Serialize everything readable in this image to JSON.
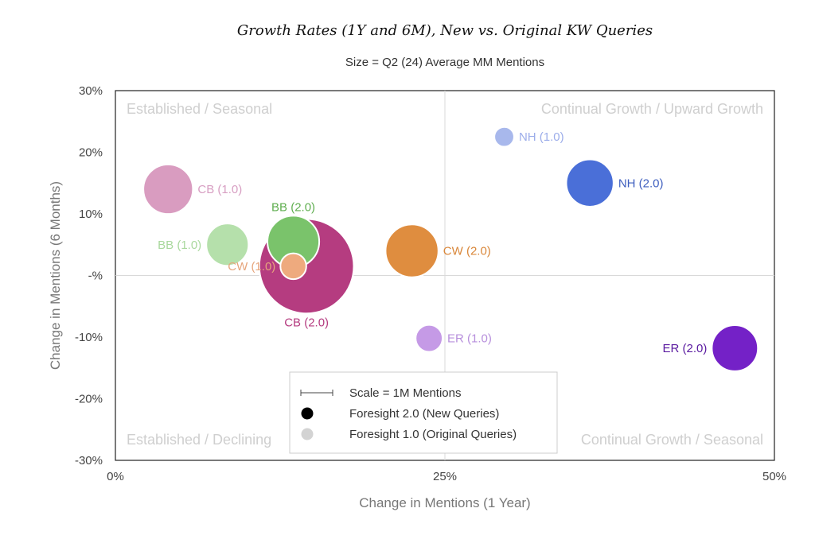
{
  "title": "Growth Rates (1Y and 6M), New vs. Original KW Queries",
  "subtitle": "Size = Q2 (24) Average MM Mentions",
  "chart_data": {
    "type": "scatter",
    "title": "Growth Rates (1Y and 6M), New vs. Original KW Queries",
    "subtitle": "Size = Q2 (24) Average MM Mentions",
    "xlabel": "Change in Mentions (1 Year)",
    "ylabel": "Change in Mentions (6 Months)",
    "xlim": [
      0,
      50
    ],
    "ylim": [
      -30,
      30
    ],
    "x_ticks": [
      "0%",
      "25%",
      "50%"
    ],
    "y_ticks": [
      "30%",
      "20%",
      "10%",
      "-%",
      "-10%",
      "-20%",
      "-30%"
    ],
    "x_tick_values": [
      0,
      25,
      50
    ],
    "y_tick_values": [
      30,
      20,
      10,
      0,
      -10,
      -20,
      -30
    ],
    "quadrant_labels": {
      "top_left": "Established / Seasonal",
      "top_right": "Continual Growth / Upward Growth",
      "bottom_left": "Established / Declining",
      "bottom_right": "Continual Growth / Seasonal"
    },
    "points": [
      {
        "label": "CB (1.0)",
        "x": 4,
        "y": 14,
        "size": 2.2,
        "color": "#d99cc0",
        "label_color": "#d79ec2"
      },
      {
        "label": "BB (1.0)",
        "x": 8.5,
        "y": 5,
        "size": 1.6,
        "color": "#b5e0ab",
        "label_color": "#a9d89d"
      },
      {
        "label": "CB (2.0)",
        "x": 14.5,
        "y": 1.5,
        "size": 8.0,
        "color": "#b53c80",
        "label_color": "#b53c80"
      },
      {
        "label": "BB (2.0)",
        "x": 13.5,
        "y": 5.5,
        "size": 2.4,
        "color": "#7ac36b",
        "label_color": "#5fae4f"
      },
      {
        "label": "CW (1.0)",
        "x": 13.5,
        "y": 1.5,
        "size": 0.6,
        "color": "#eeaa7e",
        "label_color": "#e6a57c"
      },
      {
        "label": "CW (2.0)",
        "x": 22.5,
        "y": 4,
        "size": 2.5,
        "color": "#df8d3f",
        "label_color": "#d9873a"
      },
      {
        "label": "NH (1.0)",
        "x": 29.5,
        "y": 22.5,
        "size": 0.35,
        "color": "#a8b8ec",
        "label_color": "#9cadea"
      },
      {
        "label": "NH (2.0)",
        "x": 36,
        "y": 15,
        "size": 2.0,
        "color": "#4a6fd8",
        "label_color": "#3f5fbf"
      },
      {
        "label": "ER (1.0)",
        "x": 23.8,
        "y": -10.2,
        "size": 0.65,
        "color": "#c59ae6",
        "label_color": "#b78fdc"
      },
      {
        "label": "ER (2.0)",
        "x": 47,
        "y": -11.8,
        "size": 1.9,
        "color": "#7421c7",
        "label_color": "#5a1aa0"
      }
    ],
    "legend": {
      "placement": "bottom-center",
      "scale": "Scale = 1M Mentions",
      "entries": [
        {
          "label": "Foresight 2.0 (New Queries)",
          "color": "#000000"
        },
        {
          "label": "Foresight 1.0 (Original Queries)",
          "color": "#d3d3d3"
        }
      ]
    },
    "grid": "center cross lines only"
  }
}
